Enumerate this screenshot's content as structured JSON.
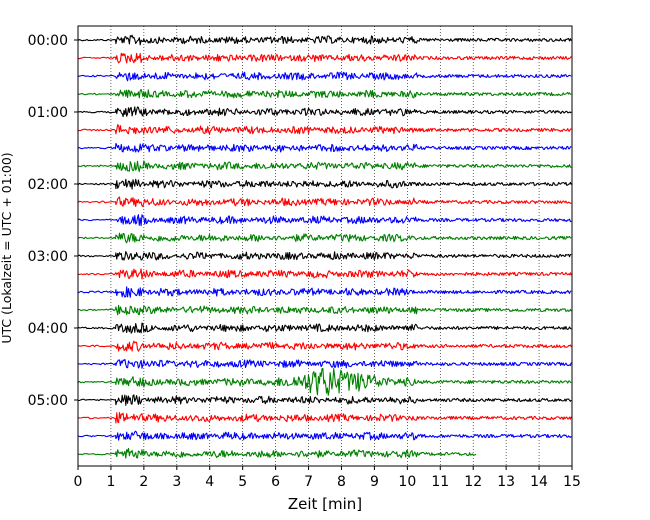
{
  "chart_data": {
    "type": "line",
    "title": "",
    "xlabel": "Zeit  [min]",
    "ylabel": "UTC (Lokalzeit = UTC + 01:00)",
    "xlim": [
      0,
      15
    ],
    "x_ticks": [
      "0",
      "1",
      "2",
      "3",
      "4",
      "5",
      "6",
      "7",
      "8",
      "9",
      "10",
      "11",
      "12",
      "13",
      "14",
      "15"
    ],
    "y_tick_labels": [
      "00:00",
      "01:00",
      "02:00",
      "03:00",
      "04:00",
      "05:00"
    ],
    "grid": "vertical dotted lines at each minute",
    "trace_colors": [
      "#000000",
      "#ff0000",
      "#0000ff",
      "#008000"
    ],
    "traces": [
      {
        "start_utc": "00:00",
        "color": "#000000",
        "end_min": 15
      },
      {
        "start_utc": "00:15",
        "color": "#ff0000",
        "end_min": 15
      },
      {
        "start_utc": "00:30",
        "color": "#0000ff",
        "end_min": 15
      },
      {
        "start_utc": "00:45",
        "color": "#008000",
        "end_min": 15
      },
      {
        "start_utc": "01:00",
        "color": "#000000",
        "end_min": 15
      },
      {
        "start_utc": "01:15",
        "color": "#ff0000",
        "end_min": 15
      },
      {
        "start_utc": "01:30",
        "color": "#0000ff",
        "end_min": 15
      },
      {
        "start_utc": "01:45",
        "color": "#008000",
        "end_min": 15
      },
      {
        "start_utc": "02:00",
        "color": "#000000",
        "end_min": 15
      },
      {
        "start_utc": "02:15",
        "color": "#ff0000",
        "end_min": 15
      },
      {
        "start_utc": "02:30",
        "color": "#0000ff",
        "end_min": 15
      },
      {
        "start_utc": "02:45",
        "color": "#008000",
        "end_min": 15
      },
      {
        "start_utc": "03:00",
        "color": "#000000",
        "end_min": 15
      },
      {
        "start_utc": "03:15",
        "color": "#ff0000",
        "end_min": 15
      },
      {
        "start_utc": "03:30",
        "color": "#0000ff",
        "end_min": 15
      },
      {
        "start_utc": "03:45",
        "color": "#008000",
        "end_min": 15
      },
      {
        "start_utc": "04:00",
        "color": "#000000",
        "end_min": 15
      },
      {
        "start_utc": "04:15",
        "color": "#ff0000",
        "end_min": 15
      },
      {
        "start_utc": "04:30",
        "color": "#0000ff",
        "end_min": 15
      },
      {
        "start_utc": "04:45",
        "color": "#008000",
        "end_min": 15,
        "events": [
          {
            "start_min": 5.8,
            "peak_min": 7.5,
            "end_min": 10.2,
            "amplitude": "large"
          }
        ]
      },
      {
        "start_utc": "05:00",
        "color": "#000000",
        "end_min": 15
      },
      {
        "start_utc": "05:15",
        "color": "#ff0000",
        "end_min": 15
      },
      {
        "start_utc": "05:30",
        "color": "#0000ff",
        "end_min": 15
      },
      {
        "start_utc": "05:45",
        "color": "#008000",
        "end_min": 12.1
      }
    ]
  }
}
